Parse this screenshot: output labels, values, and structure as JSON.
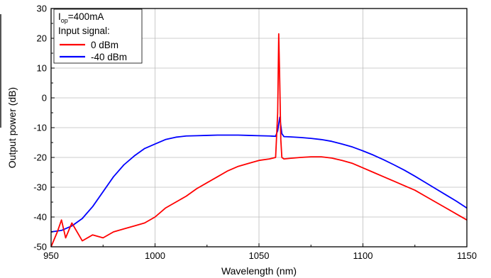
{
  "chart_data": {
    "type": "line",
    "title": "",
    "xlabel": "Wavelength (nm)",
    "ylabel": "Output power (dB)",
    "xlim": [
      950,
      1150
    ],
    "ylim": [
      -50,
      30
    ],
    "xticks": [
      950,
      1000,
      1050,
      1100,
      1150
    ],
    "yticks": [
      -50,
      -40,
      -30,
      -20,
      -10,
      0,
      10,
      20,
      30
    ],
    "grid": true,
    "legend": {
      "placement": "top-left",
      "header_prefix": "I",
      "header_sub": "op",
      "header_suffix": "=400mA",
      "subheader": "Input signal:"
    },
    "series": [
      {
        "name": "0 dBm",
        "color": "#ff0000",
        "x": [
          950,
          953,
          955,
          957,
          960,
          965,
          970,
          975,
          980,
          985,
          990,
          995,
          1000,
          1005,
          1010,
          1015,
          1020,
          1025,
          1030,
          1035,
          1040,
          1045,
          1050,
          1055,
          1058,
          1059,
          1059.5,
          1060,
          1060.5,
          1061,
          1062,
          1065,
          1070,
          1075,
          1080,
          1085,
          1090,
          1095,
          1100,
          1105,
          1110,
          1115,
          1120,
          1125,
          1130,
          1135,
          1140,
          1145,
          1150
        ],
        "y": [
          -50,
          -45,
          -41,
          -47,
          -42,
          -48,
          -46,
          -47,
          -45,
          -44,
          -43,
          -42,
          -40,
          -37,
          -35,
          -33,
          -30.5,
          -28.5,
          -26.5,
          -24.5,
          -23,
          -22,
          -21,
          -20.5,
          -20,
          -5,
          21.5,
          5,
          -14,
          -20,
          -20.5,
          -20.3,
          -20,
          -19.8,
          -19.8,
          -20.2,
          -21,
          -22,
          -23.5,
          -25,
          -26.5,
          -28,
          -29.5,
          -31,
          -33,
          -35,
          -37,
          -39,
          -41
        ]
      },
      {
        "name": "-40 dBm",
        "color": "#0000ff",
        "x": [
          950,
          955,
          960,
          965,
          970,
          975,
          980,
          985,
          990,
          995,
          1000,
          1005,
          1010,
          1015,
          1020,
          1025,
          1030,
          1035,
          1040,
          1045,
          1050,
          1055,
          1058,
          1059,
          1060,
          1061,
          1062,
          1065,
          1070,
          1075,
          1080,
          1085,
          1090,
          1095,
          1100,
          1105,
          1110,
          1115,
          1120,
          1125,
          1130,
          1135,
          1140,
          1145,
          1150
        ],
        "y": [
          -45,
          -44.5,
          -43,
          -40.5,
          -36.5,
          -31.5,
          -26.5,
          -22.5,
          -19.5,
          -17,
          -15.5,
          -14,
          -13.2,
          -12.8,
          -12.7,
          -12.6,
          -12.5,
          -12.5,
          -12.5,
          -12.6,
          -12.7,
          -12.8,
          -12.9,
          -11,
          -6.5,
          -12,
          -13,
          -13.1,
          -13.3,
          -13.6,
          -14,
          -14.6,
          -15.5,
          -16.5,
          -17.8,
          -19.2,
          -20.8,
          -22.5,
          -24.3,
          -26.3,
          -28.4,
          -30.5,
          -32.6,
          -34.7,
          -37
        ]
      }
    ]
  }
}
